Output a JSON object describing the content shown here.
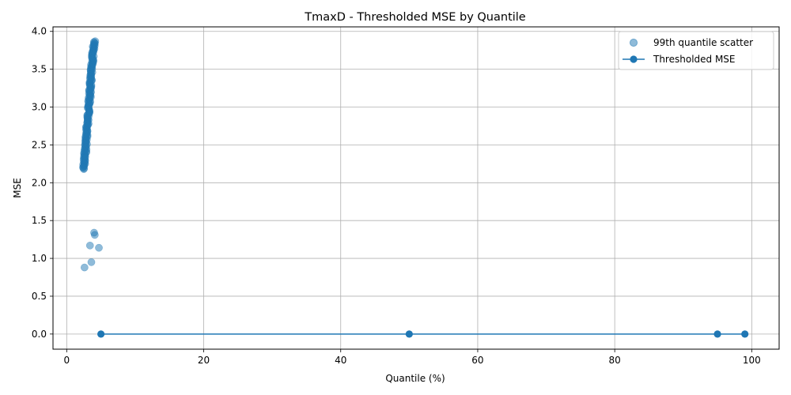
{
  "chart_data": {
    "type": "scatter",
    "title": "TmaxD - Thresholded MSE by Quantile",
    "xlabel": "Quantile (%)",
    "ylabel": "MSE",
    "xlim": [
      -2.0,
      104.0
    ],
    "ylim": [
      -0.2,
      4.06
    ],
    "xticks": [
      0,
      20,
      40,
      60,
      80,
      100
    ],
    "xtick_labels": [
      "0",
      "20",
      "40",
      "60",
      "80",
      "100"
    ],
    "yticks": [
      0.0,
      0.5,
      1.0,
      1.5,
      2.0,
      2.5,
      3.0,
      3.5,
      4.0
    ],
    "ytick_labels": [
      "0.0",
      "0.5",
      "1.0",
      "1.5",
      "2.0",
      "2.5",
      "3.0",
      "3.5",
      "4.0"
    ],
    "grid": true,
    "legend_position": "top-right",
    "series": [
      {
        "name": "99th quantile scatter",
        "kind": "scatter",
        "color": "#1f77b4",
        "alpha": 0.5,
        "x": [
          2.6,
          3.4,
          3.6,
          4.0,
          4.1,
          4.7
        ],
        "y": [
          0.88,
          1.17,
          0.95,
          1.34,
          1.31,
          1.14
        ],
        "dense_band": {
          "x_start": 2.5,
          "x_end": 4.0,
          "y_start": 2.18,
          "y_end": 3.87,
          "x_jitter": 0.35,
          "count": 170
        }
      },
      {
        "name": "Thresholded MSE",
        "kind": "line",
        "color": "#1f77b4",
        "marker": "circle",
        "x": [
          5,
          50,
          95,
          99
        ],
        "y": [
          0.0,
          0.0,
          0.0,
          0.0
        ]
      }
    ]
  }
}
